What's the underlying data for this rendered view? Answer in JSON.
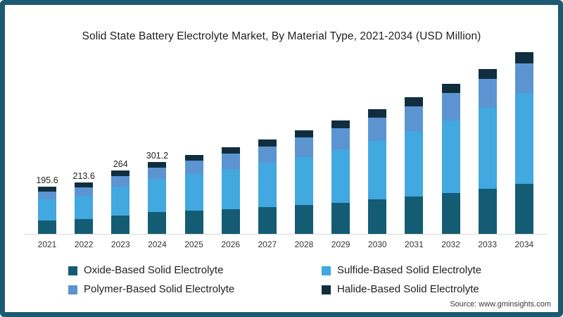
{
  "title": "Solid State Battery Electrolyte Market, By Material Type, 2021-2034 (USD Million)",
  "source": "Source: www.gminsights.com",
  "colors": {
    "frame_border": "#1b5a73",
    "background": "#ffffff",
    "axis_line": "#d9d9d9",
    "title_text": "#1f1f1f",
    "label_text": "#222222"
  },
  "chart_data": {
    "type": "bar",
    "stacked": true,
    "title": "Solid State Battery Electrolyte Market, By Material Type, 2021-2034 (USD Million)",
    "xlabel": "",
    "ylabel": "",
    "legend_position": "bottom",
    "grid": false,
    "y_axis_shown": false,
    "categories": [
      "2021",
      "2022",
      "2023",
      "2024",
      "2025",
      "2026",
      "2027",
      "2028",
      "2029",
      "2030",
      "2031",
      "2032",
      "2033",
      "2034"
    ],
    "series": [
      {
        "name": "Oxide-Based Solid Electrolyte",
        "color": "#145c74",
        "values": [
          57,
          62,
          78,
          90,
          97,
          104,
          112,
          120,
          131,
          143,
          156,
          172,
          188,
          210
        ]
      },
      {
        "name": "Sulfide-Based Solid Electrolyte",
        "color": "#41a8e0",
        "values": [
          87,
          96,
          119,
          141,
          152,
          167,
          184,
          202,
          222,
          246,
          273,
          303,
          338,
          379
        ]
      },
      {
        "name": "Polymer-Based Solid Electrolyte",
        "color": "#5b94d1",
        "values": [
          32,
          35,
          43,
          46,
          56,
          63,
          70,
          81,
          89,
          96,
          104,
          112,
          121,
          122
        ]
      },
      {
        "name": "Halide-Based Solid Electrolyte",
        "color": "#112e3f",
        "values": [
          19.6,
          20.6,
          24,
          24.2,
          25,
          27,
          29,
          30,
          33,
          36,
          39,
          41,
          43,
          47
        ]
      }
    ],
    "totals_estimated": [
      195.6,
      213.6,
      264,
      301.2,
      330,
      361,
      395,
      433,
      475,
      521,
      572,
      628,
      690,
      758
    ],
    "visible_total_labels": [
      "195.6",
      "213.6",
      "264",
      "301.2",
      "",
      "",
      "",
      "",
      "",
      "",
      "",
      "",
      "",
      ""
    ],
    "stack_order_bottom_to_top": [
      "Oxide-Based Solid Electrolyte",
      "Sulfide-Based Solid Electrolyte",
      "Polymer-Based Solid Electrolyte",
      "Halide-Based Solid Electrolyte"
    ]
  },
  "legend": {
    "items": [
      {
        "label": "Oxide-Based Solid Electrolyte"
      },
      {
        "label": "Sulfide-Based Solid Electrolyte"
      },
      {
        "label": "Polymer-Based Solid Electrolyte"
      },
      {
        "label": "Halide-Based Solid Electrolyte"
      }
    ]
  }
}
